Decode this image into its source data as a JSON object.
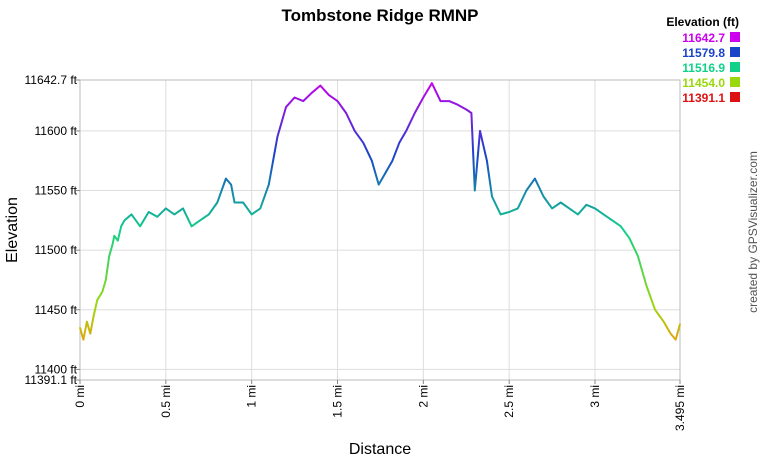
{
  "chart_data": {
    "type": "line",
    "title": "Tombstone Ridge RMNP",
    "xlabel": "Distance",
    "ylabel": "Elevation",
    "xlim": [
      0,
      3.495
    ],
    "ylim": [
      11391.1,
      11642.7
    ],
    "grid": true,
    "x_ticks": [
      {
        "value": 0,
        "label": "0 mi"
      },
      {
        "value": 0.5,
        "label": "0.5 mi"
      },
      {
        "value": 1,
        "label": "1 mi"
      },
      {
        "value": 1.5,
        "label": "1.5 mi"
      },
      {
        "value": 2,
        "label": "2 mi"
      },
      {
        "value": 2.5,
        "label": "2.5 mi"
      },
      {
        "value": 3,
        "label": "3 mi"
      },
      {
        "value": 3.495,
        "label": "3.495 mi"
      }
    ],
    "y_ticks": [
      {
        "value": 11391.1,
        "label": "11391.1 ft"
      },
      {
        "value": 11400,
        "label": "11400 ft"
      },
      {
        "value": 11450,
        "label": "11450 ft"
      },
      {
        "value": 11500,
        "label": "11500 ft"
      },
      {
        "value": 11550,
        "label": "11550 ft"
      },
      {
        "value": 11600,
        "label": "11600 ft"
      },
      {
        "value": 11642.7,
        "label": "11642.7 ft"
      }
    ],
    "legend": {
      "title": "Elevation (ft)",
      "placement": "top-right",
      "entries": [
        {
          "label": "11642.7",
          "color": "#cc00ee"
        },
        {
          "label": "11579.8",
          "color": "#1a44c8"
        },
        {
          "label": "11516.9",
          "color": "#11d08a"
        },
        {
          "label": "11454.0",
          "color": "#9ad80e"
        },
        {
          "label": "11391.1",
          "color": "#dd1111"
        }
      ]
    },
    "series": [
      {
        "x": [
          0,
          0.02,
          0.04,
          0.06,
          0.08,
          0.1,
          0.13,
          0.15,
          0.17,
          0.19,
          0.2,
          0.22,
          0.24,
          0.26,
          0.3,
          0.35,
          0.4,
          0.45,
          0.5,
          0.55,
          0.6,
          0.65,
          0.7,
          0.75,
          0.8,
          0.85,
          0.88,
          0.9,
          0.95,
          1.0,
          1.05,
          1.1,
          1.15,
          1.2,
          1.25,
          1.3,
          1.35,
          1.4,
          1.45,
          1.5,
          1.55,
          1.6,
          1.65,
          1.7,
          1.74,
          1.78,
          1.82,
          1.86,
          1.9,
          1.95,
          2.0,
          2.05,
          2.1,
          2.15,
          2.2,
          2.25,
          2.28,
          2.3,
          2.33,
          2.37,
          2.4,
          2.45,
          2.5,
          2.55,
          2.6,
          2.65,
          2.7,
          2.75,
          2.8,
          2.85,
          2.9,
          2.95,
          3.0,
          3.05,
          3.1,
          3.15,
          3.2,
          3.25,
          3.3,
          3.35,
          3.4,
          3.44,
          3.47,
          3.495
        ],
        "y": [
          11435,
          11425,
          11440,
          11430,
          11445,
          11458,
          11465,
          11475,
          11495,
          11505,
          11512,
          11508,
          11520,
          11525,
          11530,
          11520,
          11532,
          11528,
          11535,
          11530,
          11535,
          11520,
          11525,
          11530,
          11540,
          11560,
          11555,
          11540,
          11540,
          11530,
          11535,
          11555,
          11595,
          11620,
          11628,
          11625,
          11632,
          11638,
          11630,
          11625,
          11615,
          11600,
          11590,
          11575,
          11555,
          11565,
          11575,
          11590,
          11600,
          11615,
          11628,
          11640,
          11625,
          11625,
          11622,
          11618,
          11615,
          11550,
          11600,
          11575,
          11545,
          11530,
          11532,
          11535,
          11550,
          11560,
          11545,
          11535,
          11540,
          11535,
          11530,
          11538,
          11535,
          11530,
          11525,
          11520,
          11510,
          11495,
          11470,
          11450,
          11440,
          11430,
          11425,
          11438
        ]
      }
    ],
    "side_credit": "created by GPSVisualizer.com"
  }
}
